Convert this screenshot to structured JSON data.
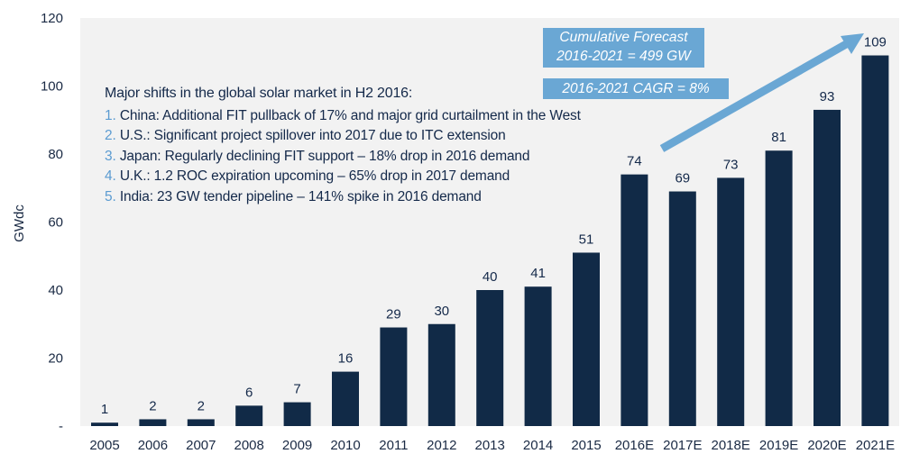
{
  "chart_data": {
    "type": "bar",
    "title": "",
    "xlabel": "",
    "ylabel": "GWdc",
    "ylim": [
      0,
      120
    ],
    "yticks": [
      0,
      20,
      40,
      60,
      80,
      100,
      120
    ],
    "ytick_labels": [
      "-",
      "20",
      "40",
      "60",
      "80",
      "100",
      "120"
    ],
    "grid": false,
    "categories": [
      "2005",
      "2006",
      "2007",
      "2008",
      "2009",
      "2010",
      "2011",
      "2012",
      "2013",
      "2014",
      "2015",
      "2016E",
      "2017E",
      "2018E",
      "2019E",
      "2020E",
      "2021E"
    ],
    "values": [
      1,
      2,
      2,
      6,
      7,
      16,
      29,
      30,
      40,
      41,
      51,
      74,
      69,
      73,
      81,
      93,
      109
    ],
    "data_labels": [
      "1",
      "2",
      "2",
      "6",
      "7",
      "16",
      "29",
      "30",
      "40",
      "41",
      "51",
      "74",
      "69",
      "73",
      "81",
      "93",
      "109"
    ],
    "colors": {
      "bar": "#112a47",
      "plot_background": "#f2f2f2",
      "accent": "#6aa7d4",
      "list_number": "#5b9bd1"
    },
    "annotations": {
      "forecast_box": [
        "Cumulative Forecast",
        "2016-2021 = 499 GW"
      ],
      "cagr_box": "2016-2021 CAGR = 8%",
      "trend_arrow": {
        "from_category": "2016E",
        "to_category": "2021E",
        "meaning": "growth trend"
      }
    }
  },
  "notes": {
    "title": "Major shifts in the global solar market in H2 2016:",
    "items": [
      {
        "num": "1.",
        "country": "China",
        "text": ": Additional FIT pullback of 17% and major grid curtailment in the West"
      },
      {
        "num": "2.",
        "country": "U.S.",
        "text": ": Significant project spillover into 2017 due to ITC extension"
      },
      {
        "num": "3.",
        "country": "Japan",
        "text": ": Regularly declining FIT support – 18% drop in 2016 demand"
      },
      {
        "num": "4.",
        "country": "U.K.",
        "text": ": 1.2 ROC expiration upcoming – 65% drop in 2017 demand"
      },
      {
        "num": "5.",
        "country": "India",
        "text": ": 23 GW tender pipeline – 141% spike in 2016 demand"
      }
    ]
  }
}
